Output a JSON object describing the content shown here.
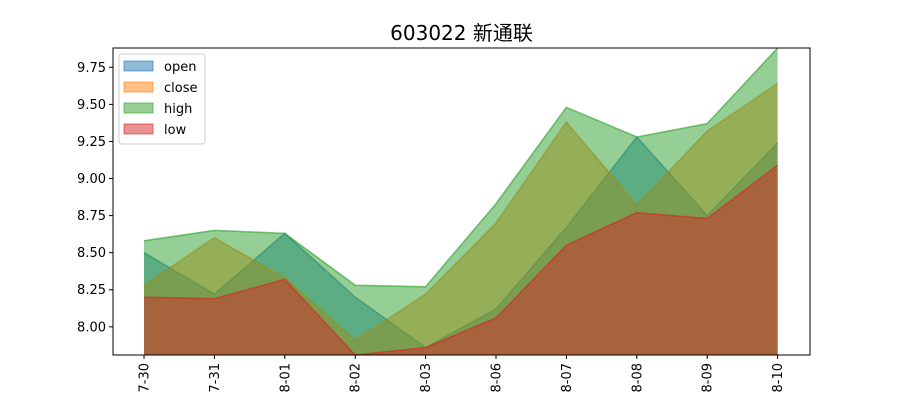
{
  "chart_data": {
    "type": "area",
    "title": "603022 新通联",
    "xlabel": "",
    "ylabel": "",
    "categories": [
      "7-30",
      "7-31",
      "8-01",
      "8-02",
      "8-03",
      "8-06",
      "8-07",
      "8-08",
      "8-09",
      "8-10"
    ],
    "ylim": [
      7.81,
      9.88
    ],
    "yticks": [
      "8.00",
      "8.25",
      "8.50",
      "8.75",
      "9.00",
      "9.25",
      "9.50",
      "9.75"
    ],
    "legend": "top-left",
    "grid": false,
    "series": [
      {
        "name": "open",
        "color": "#1f77b4",
        "values": [
          8.5,
          8.22,
          8.63,
          8.2,
          7.86,
          8.12,
          8.67,
          9.28,
          8.75,
          9.24
        ]
      },
      {
        "name": "close",
        "color": "#ff7f0e",
        "values": [
          8.28,
          8.6,
          8.33,
          7.91,
          8.22,
          8.7,
          9.38,
          8.82,
          9.32,
          9.64
        ]
      },
      {
        "name": "high",
        "color": "#2ca02c",
        "values": [
          8.58,
          8.65,
          8.63,
          8.28,
          8.27,
          8.83,
          9.48,
          9.28,
          9.37,
          9.88
        ]
      },
      {
        "name": "low",
        "color": "#d62728",
        "values": [
          8.2,
          8.19,
          8.32,
          7.81,
          7.86,
          8.06,
          8.55,
          8.77,
          8.73,
          9.09
        ]
      }
    ]
  }
}
